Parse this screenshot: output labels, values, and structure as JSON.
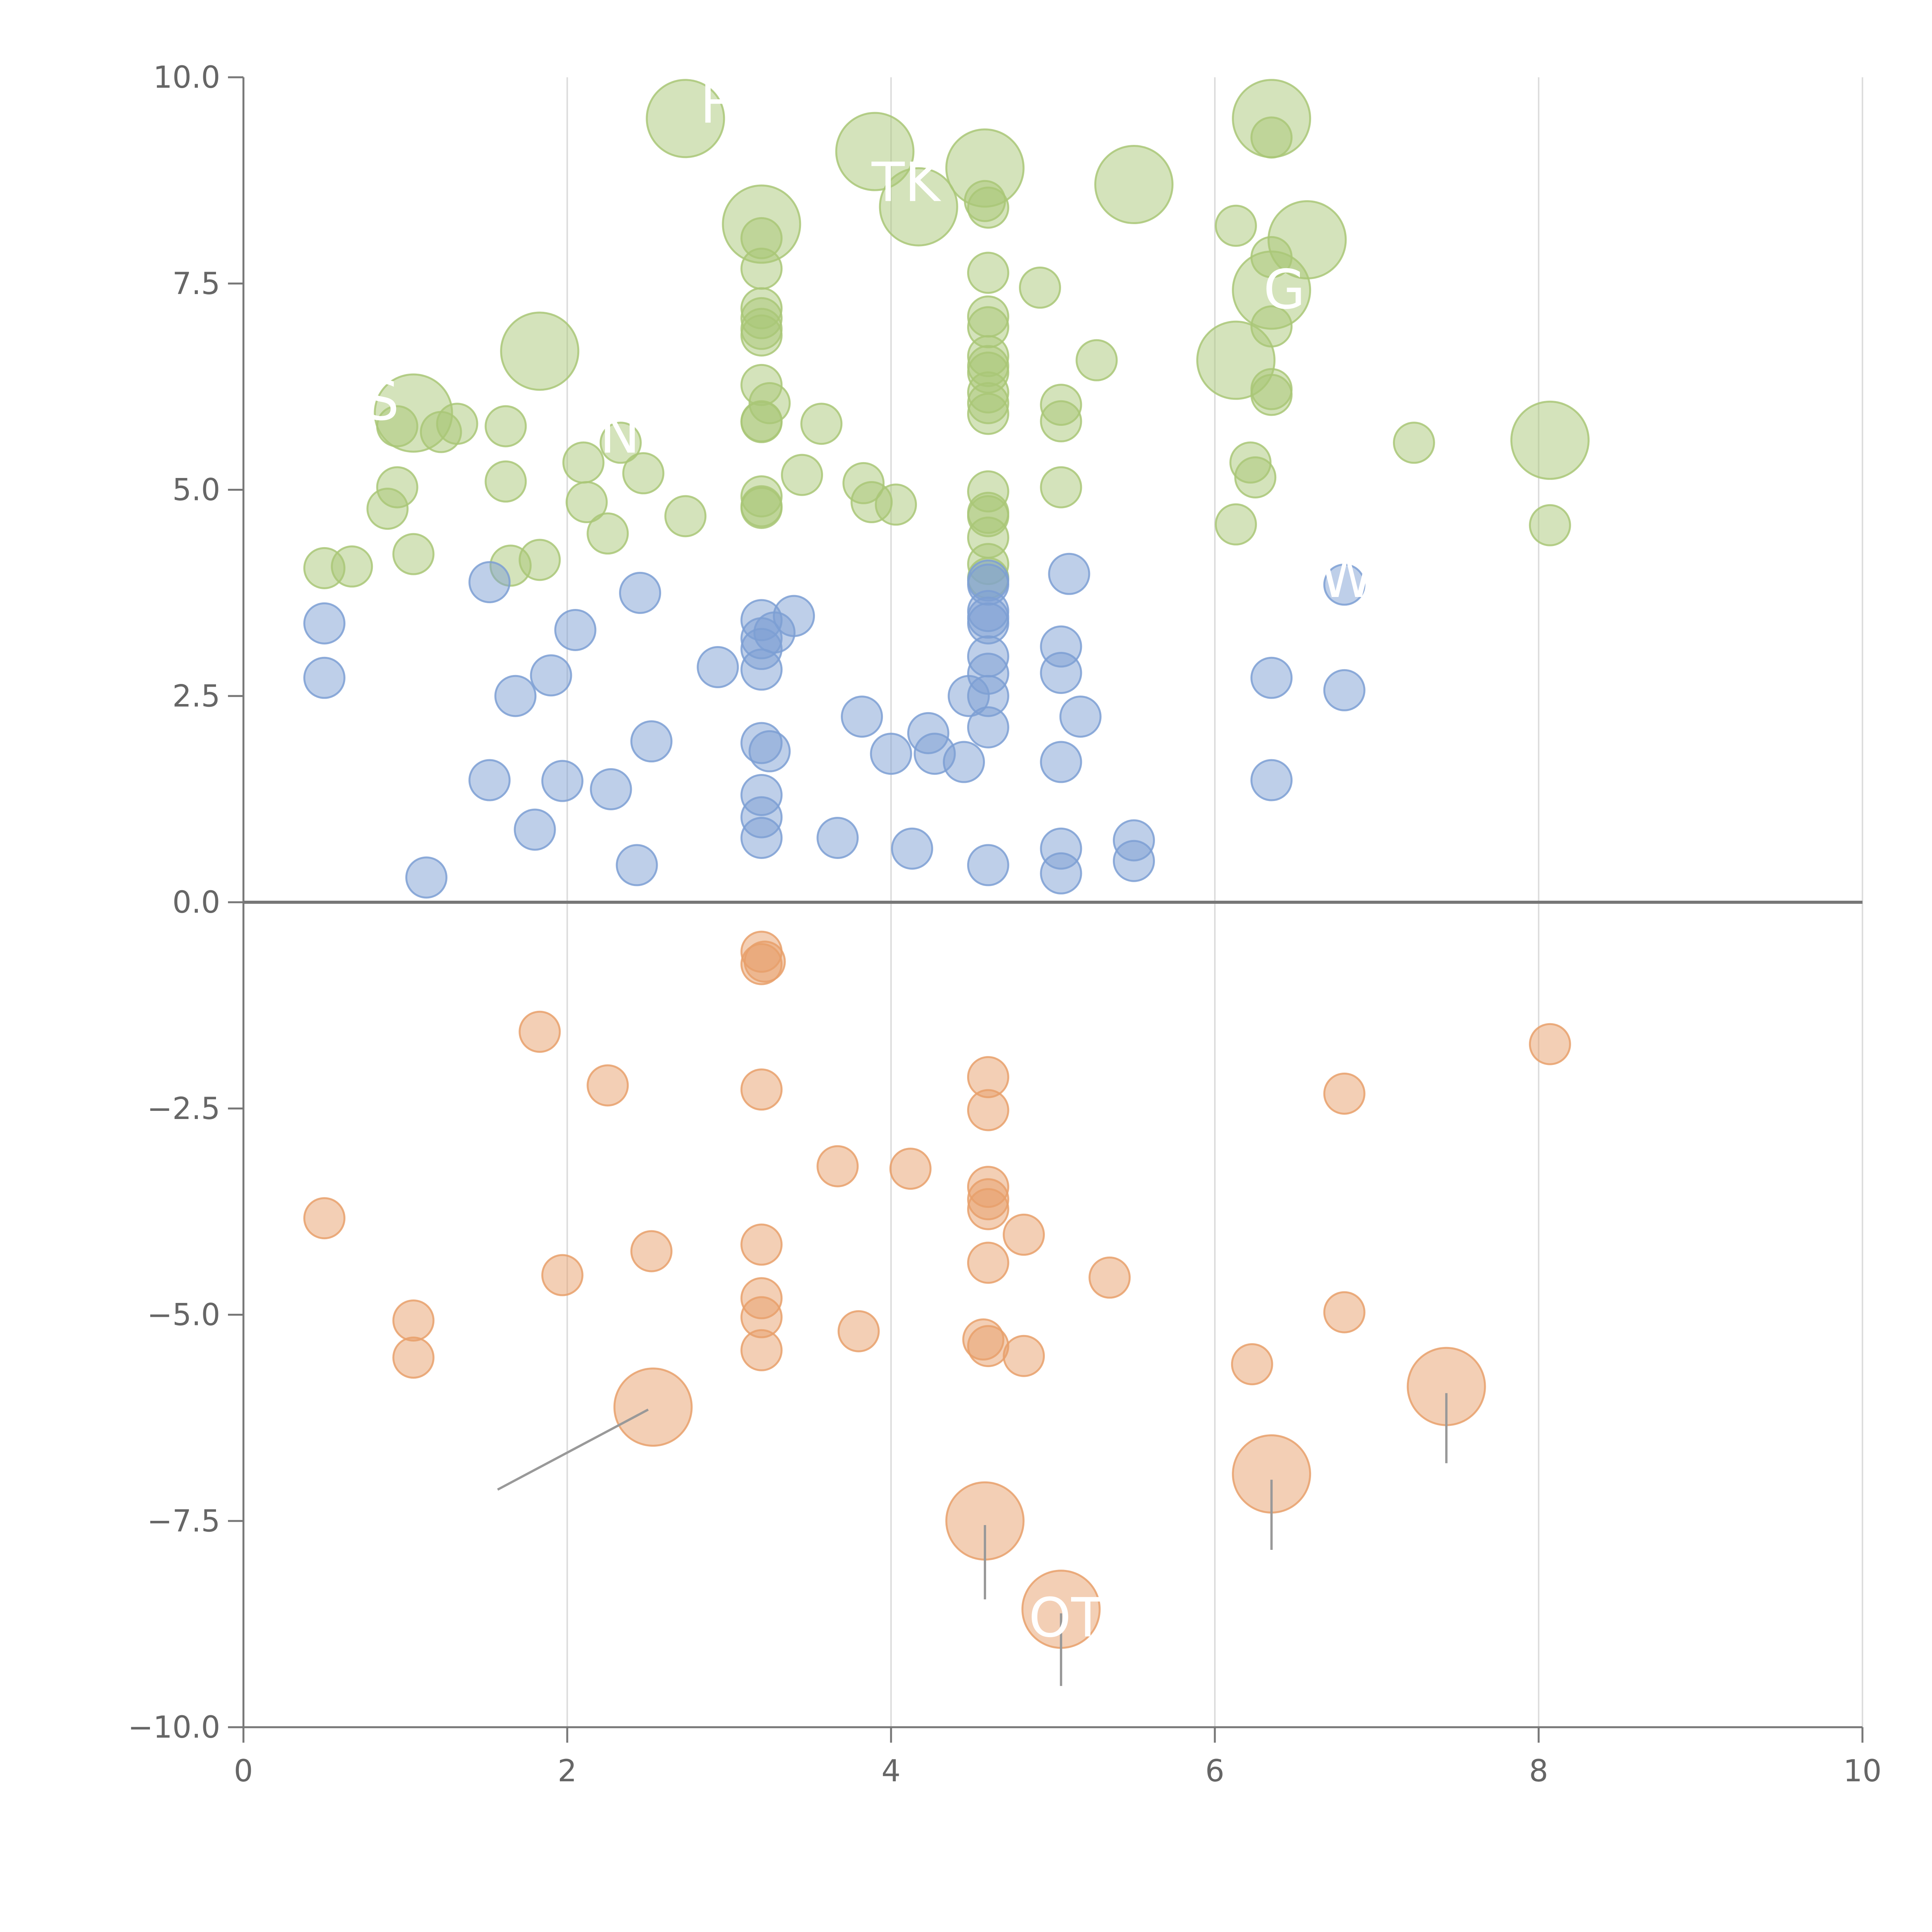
{
  "chart_data": {
    "type": "scatter",
    "title": "",
    "xlabel": "",
    "ylabel": "",
    "xlim": [
      0,
      10
    ],
    "ylim": [
      -10,
      10
    ],
    "x_ticks": [
      0,
      2,
      4,
      6,
      8,
      10
    ],
    "x_tick_labels": [
      "0",
      "2",
      "4",
      "6",
      "8",
      "10"
    ],
    "y_ticks": [
      10,
      7.5,
      5,
      2.5,
      0,
      -2.5,
      -5,
      -7.5,
      -10
    ],
    "y_tick_labels": [
      "10.0",
      "7.5",
      "5.0",
      "2.5",
      "0.0",
      "−2.5",
      "−5.0",
      "−7.5",
      "−10.0"
    ],
    "vertical_grid": true,
    "zero_line": true,
    "series": [
      {
        "name": "green",
        "color": "#a9c777",
        "points": [
          [
            0.5,
            4.05,
            0
          ],
          [
            0.67,
            4.07,
            0
          ],
          [
            0.89,
            4.77,
            0
          ],
          [
            0.95,
            5.77,
            0
          ],
          [
            0.95,
            5.03,
            0
          ],
          [
            1.05,
            4.22,
            0
          ],
          [
            1.05,
            5.93,
            1
          ],
          [
            1.22,
            5.7,
            0
          ],
          [
            1.32,
            5.8,
            0
          ],
          [
            1.62,
            5.77,
            0
          ],
          [
            1.62,
            5.1,
            0
          ],
          [
            1.65,
            4.08,
            0
          ],
          [
            1.83,
            4.15,
            0
          ],
          [
            1.83,
            6.68,
            1
          ],
          [
            2.1,
            5.33,
            0
          ],
          [
            2.12,
            4.85,
            0
          ],
          [
            2.25,
            4.47,
            0
          ],
          [
            2.33,
            5.57,
            0
          ],
          [
            2.47,
            5.2,
            0
          ],
          [
            2.73,
            4.68,
            0
          ],
          [
            2.73,
            9.5,
            1
          ],
          [
            3.2,
            8.22,
            1
          ],
          [
            3.2,
            8.05,
            0
          ],
          [
            3.2,
            7.68,
            0
          ],
          [
            3.2,
            7.2,
            0
          ],
          [
            3.2,
            7.08,
            0
          ],
          [
            3.2,
            6.95,
            0
          ],
          [
            3.2,
            6.87,
            0
          ],
          [
            3.25,
            6.05,
            0
          ],
          [
            3.2,
            6.27,
            0
          ],
          [
            3.2,
            5.83,
            0
          ],
          [
            3.2,
            5.82,
            0
          ],
          [
            3.2,
            4.92,
            0
          ],
          [
            3.2,
            4.8,
            0
          ],
          [
            3.2,
            4.78,
            0
          ],
          [
            3.45,
            5.18,
            0
          ],
          [
            3.57,
            5.8,
            0
          ],
          [
            3.83,
            5.08,
            0
          ],
          [
            3.88,
            4.85,
            0
          ],
          [
            3.9,
            9.1,
            1
          ],
          [
            4.03,
            4.82,
            0
          ],
          [
            4.17,
            8.43,
            1
          ],
          [
            4.58,
            8.9,
            1
          ],
          [
            4.58,
            8.5,
            0
          ],
          [
            4.6,
            8.42,
            0
          ],
          [
            4.6,
            7.63,
            0
          ],
          [
            4.6,
            7.1,
            0
          ],
          [
            4.6,
            6.97,
            0
          ],
          [
            4.6,
            6.62,
            0
          ],
          [
            4.6,
            6.5,
            0
          ],
          [
            4.6,
            6.42,
            0
          ],
          [
            4.6,
            6.18,
            0
          ],
          [
            4.6,
            6.05,
            0
          ],
          [
            4.6,
            5.92,
            0
          ],
          [
            4.6,
            4.98,
            0
          ],
          [
            4.6,
            4.72,
            0
          ],
          [
            4.6,
            4.68,
            0
          ],
          [
            4.6,
            4.42,
            0
          ],
          [
            4.6,
            4.1,
            0
          ],
          [
            4.6,
            3.93,
            0
          ],
          [
            4.92,
            7.45,
            0
          ],
          [
            5.05,
            6.03,
            0
          ],
          [
            5.05,
            5.83,
            0
          ],
          [
            5.05,
            5.03,
            0
          ],
          [
            5.27,
            6.57,
            0
          ],
          [
            5.5,
            8.7,
            1
          ],
          [
            6.13,
            8.2,
            0
          ],
          [
            6.13,
            4.58,
            0
          ],
          [
            6.13,
            6.57,
            1
          ],
          [
            6.22,
            5.33,
            0
          ],
          [
            6.25,
            5.15,
            0
          ],
          [
            6.35,
            9.5,
            1
          ],
          [
            6.35,
            9.27,
            0
          ],
          [
            6.35,
            7.42,
            1
          ],
          [
            6.35,
            7.82,
            0
          ],
          [
            6.35,
            6.98,
            0
          ],
          [
            6.35,
            6.22,
            0
          ],
          [
            6.35,
            6.15,
            0
          ],
          [
            6.57,
            8.03,
            1
          ],
          [
            7.23,
            5.57,
            0
          ],
          [
            8.07,
            5.6,
            1
          ],
          [
            8.07,
            4.57,
            0
          ]
        ]
      },
      {
        "name": "blue",
        "color": "#7d9fd3",
        "points": [
          [
            0.5,
            3.38,
            0
          ],
          [
            0.5,
            2.72,
            0
          ],
          [
            1.13,
            0.3,
            0
          ],
          [
            1.52,
            3.88,
            0
          ],
          [
            1.52,
            1.48,
            0
          ],
          [
            1.68,
            2.5,
            0
          ],
          [
            1.8,
            0.88,
            0
          ],
          [
            1.9,
            2.75,
            0
          ],
          [
            1.97,
            1.47,
            0
          ],
          [
            2.05,
            3.3,
            0
          ],
          [
            2.27,
            1.37,
            0
          ],
          [
            2.43,
            0.45,
            0
          ],
          [
            2.45,
            3.75,
            0
          ],
          [
            2.52,
            1.95,
            0
          ],
          [
            2.93,
            2.85,
            0
          ],
          [
            3.2,
            3.42,
            0
          ],
          [
            3.2,
            3.2,
            0
          ],
          [
            3.2,
            3.07,
            0
          ],
          [
            3.2,
            2.82,
            0
          ],
          [
            3.2,
            1.93,
            0
          ],
          [
            3.25,
            1.83,
            0
          ],
          [
            3.28,
            3.27,
            0
          ],
          [
            3.2,
            1.3,
            0
          ],
          [
            3.2,
            1.03,
            0
          ],
          [
            3.2,
            0.78,
            0
          ],
          [
            3.4,
            3.47,
            0
          ],
          [
            3.67,
            0.78,
            0
          ],
          [
            3.82,
            2.25,
            0
          ],
          [
            4.0,
            1.8,
            0
          ],
          [
            4.13,
            0.65,
            0
          ],
          [
            4.23,
            2.05,
            0
          ],
          [
            4.27,
            1.8,
            0
          ],
          [
            4.45,
            1.7,
            0
          ],
          [
            4.48,
            2.5,
            0
          ],
          [
            4.6,
            3.9,
            0
          ],
          [
            4.6,
            3.85,
            0
          ],
          [
            4.6,
            3.53,
            0
          ],
          [
            4.6,
            3.45,
            0
          ],
          [
            4.6,
            3.38,
            0
          ],
          [
            4.6,
            2.98,
            0
          ],
          [
            4.6,
            2.77,
            0
          ],
          [
            4.6,
            2.5,
            0
          ],
          [
            4.6,
            2.12,
            0
          ],
          [
            4.6,
            0.45,
            0
          ],
          [
            5.05,
            3.1,
            0
          ],
          [
            5.05,
            2.78,
            0
          ],
          [
            5.05,
            1.7,
            0
          ],
          [
            5.05,
            0.65,
            0
          ],
          [
            5.05,
            0.35,
            0
          ],
          [
            5.1,
            3.98,
            0
          ],
          [
            5.17,
            2.25,
            0
          ],
          [
            5.5,
            0.75,
            0
          ],
          [
            5.5,
            0.5,
            0
          ],
          [
            6.35,
            2.72,
            0
          ],
          [
            6.35,
            1.48,
            0
          ],
          [
            6.8,
            3.85,
            0
          ],
          [
            6.8,
            2.57,
            0
          ]
        ]
      },
      {
        "name": "orange",
        "color": "#e8a06b",
        "points": [
          [
            0.5,
            -3.83,
            0
          ],
          [
            1.05,
            -5.07,
            0
          ],
          [
            1.05,
            -5.52,
            0
          ],
          [
            1.83,
            -1.57,
            0
          ],
          [
            1.97,
            -4.52,
            0
          ],
          [
            2.25,
            -2.22,
            0
          ],
          [
            2.52,
            -4.23,
            0
          ],
          [
            2.53,
            -6.12,
            1
          ],
          [
            3.2,
            -0.6,
            0
          ],
          [
            3.22,
            -0.72,
            0
          ],
          [
            3.2,
            -0.75,
            0
          ],
          [
            3.2,
            -2.27,
            0
          ],
          [
            3.2,
            -4.15,
            0
          ],
          [
            3.2,
            -4.8,
            0
          ],
          [
            3.2,
            -5.03,
            0
          ],
          [
            3.2,
            -5.43,
            0
          ],
          [
            3.67,
            -3.2,
            0
          ],
          [
            3.8,
            -5.2,
            0
          ],
          [
            4.12,
            -3.23,
            0
          ],
          [
            4.57,
            -5.3,
            0
          ],
          [
            4.6,
            -2.12,
            0
          ],
          [
            4.6,
            -2.52,
            0
          ],
          [
            4.6,
            -3.45,
            0
          ],
          [
            4.6,
            -3.6,
            0
          ],
          [
            4.6,
            -3.72,
            0
          ],
          [
            4.6,
            -4.37,
            0
          ],
          [
            4.6,
            -5.38,
            0
          ],
          [
            4.58,
            -7.5,
            1
          ],
          [
            4.82,
            -4.03,
            0
          ],
          [
            4.82,
            -5.5,
            0
          ],
          [
            5.05,
            -8.57,
            1
          ],
          [
            5.35,
            -4.55,
            0
          ],
          [
            6.23,
            -5.6,
            0
          ],
          [
            6.35,
            -6.93,
            1
          ],
          [
            6.8,
            -2.32,
            0
          ],
          [
            6.8,
            -4.97,
            0
          ],
          [
            7.43,
            -5.87,
            1
          ],
          [
            8.07,
            -1.72,
            0
          ]
        ]
      }
    ],
    "annotations": [
      {
        "label": "S"
      },
      {
        "label": "F"
      },
      {
        "label": "TK"
      },
      {
        "label": "G"
      },
      {
        "label": "WZ"
      },
      {
        "label": "N"
      },
      {
        "label": "OT"
      }
    ]
  }
}
